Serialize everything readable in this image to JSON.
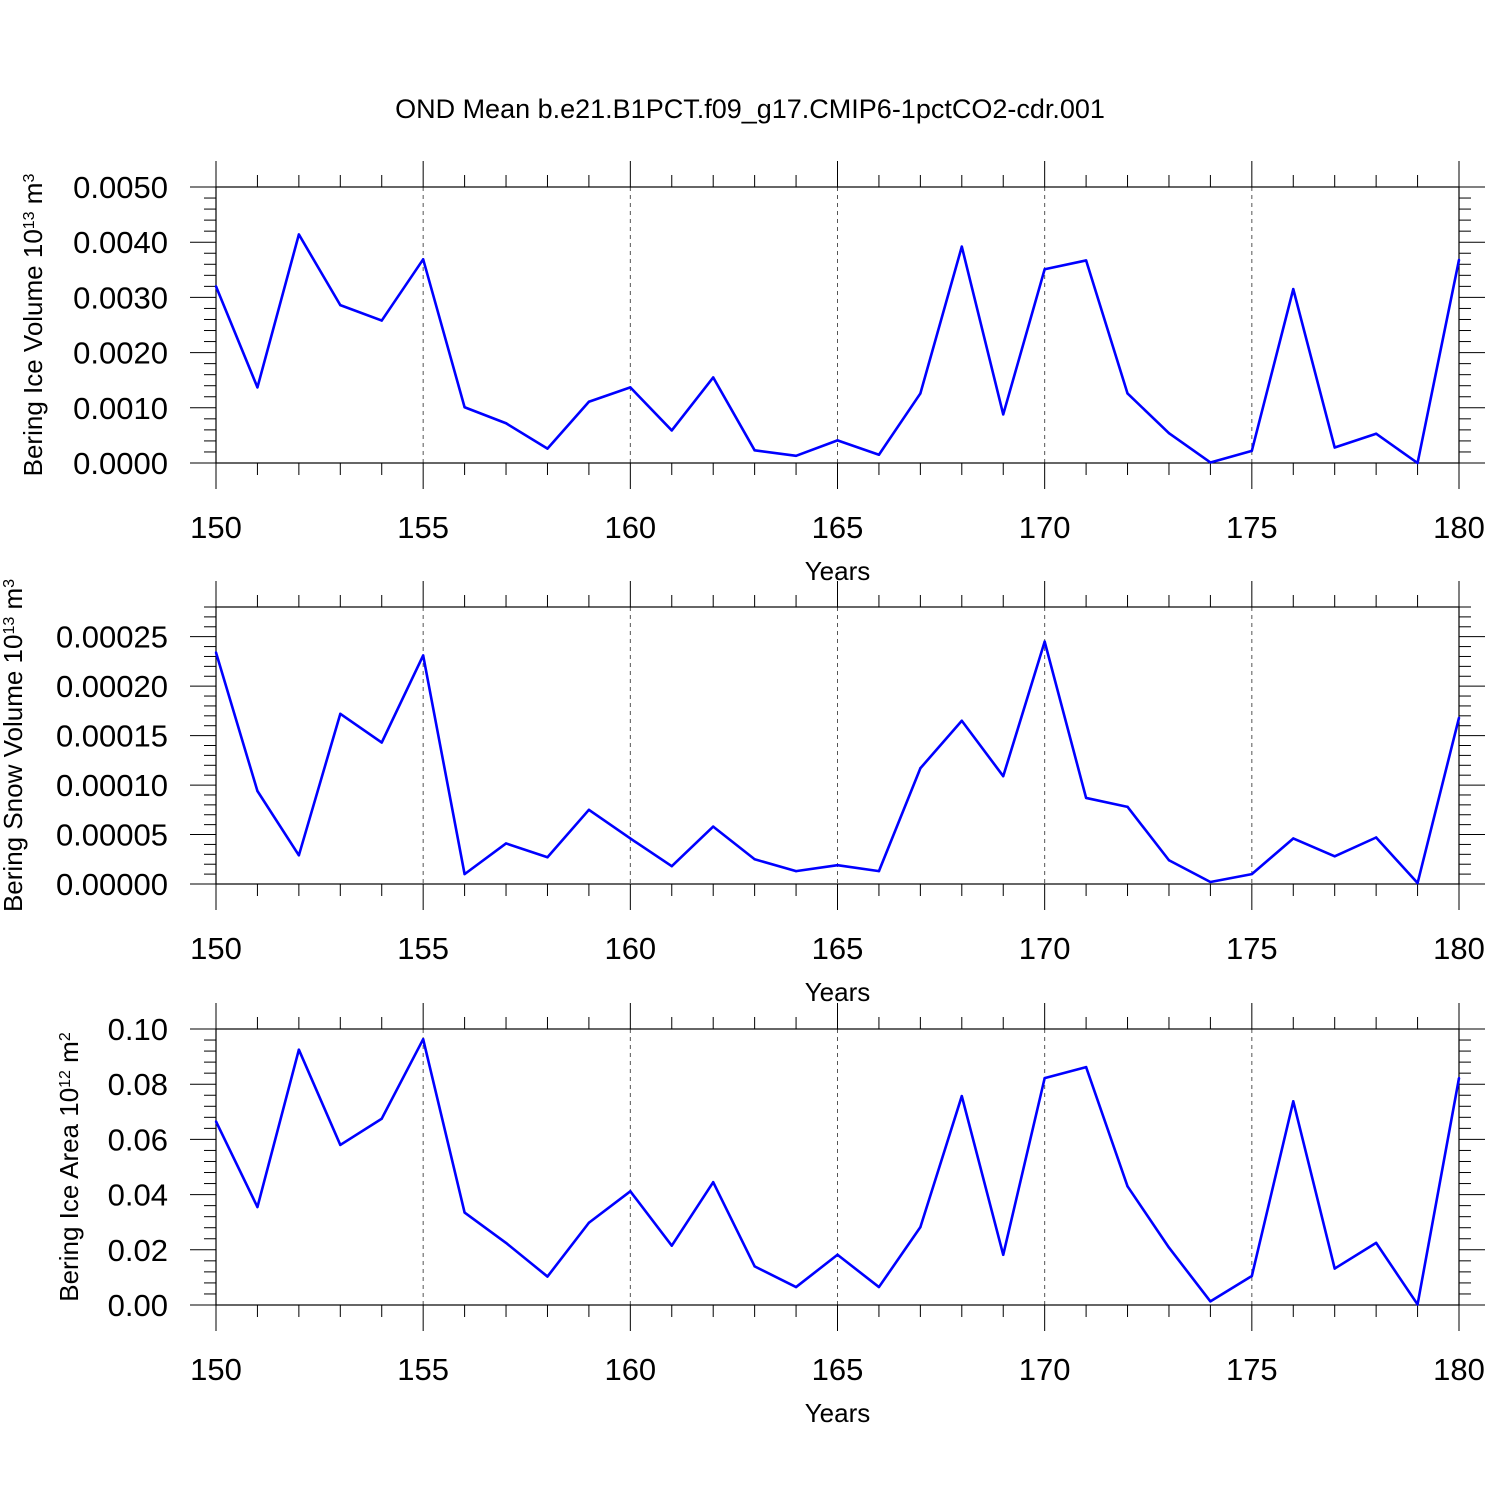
{
  "title": "OND Mean b.e21.B1PCT.f09_g17.CMIP6-1pctCO2-cdr.001",
  "colors": {
    "line": "#0000ff",
    "axis": "#000000",
    "grid": "#555555"
  },
  "chart_data": [
    {
      "type": "line",
      "title": "OND Mean b.e21.B1PCT.f09_g17.CMIP6-1pctCO2-cdr.001",
      "xlabel": "Years",
      "ylabel": "Bering Ice Volume 10",
      "ylabel_exp": "13",
      "ylabel_unit": " m",
      "ylabel_unit_exp": "3",
      "xlim": [
        150,
        180
      ],
      "ylim": [
        0,
        0.005
      ],
      "xticks": [
        150,
        155,
        160,
        165,
        170,
        175,
        180
      ],
      "xtick_labels": [
        "150",
        "155",
        "160",
        "165",
        "170",
        "175",
        "180"
      ],
      "yticks": [
        0,
        0.001,
        0.002,
        0.003,
        0.004,
        0.005
      ],
      "ytick_labels": [
        "0.0000",
        "0.0010",
        "0.0020",
        "0.0030",
        "0.0040",
        "0.0050"
      ],
      "grid": "vertical dashed at major x ticks",
      "x": [
        150,
        151,
        152,
        153,
        154,
        155,
        156,
        157,
        158,
        159,
        160,
        161,
        162,
        163,
        164,
        165,
        166,
        167,
        168,
        169,
        170,
        171,
        172,
        173,
        174,
        175,
        176,
        177,
        178,
        179,
        180
      ],
      "series": [
        {
          "name": "Bering Ice Volume",
          "values": [
            0.0032,
            0.00137,
            0.00414,
            0.00286,
            0.00258,
            0.00369,
            0.00101,
            0.00072,
            0.00026,
            0.00111,
            0.00137,
            0.00059,
            0.00155,
            0.00023,
            0.00013,
            0.00041,
            0.00015,
            0.00126,
            0.00392,
            0.00088,
            0.00351,
            0.00367,
            0.00126,
            0.00054,
            1e-05,
            0.00022,
            0.00315,
            0.00028,
            0.00053,
            0.0,
            0.00368
          ]
        }
      ]
    },
    {
      "type": "line",
      "xlabel": "Years",
      "ylabel": "Bering Snow Volume 10",
      "ylabel_exp": "13",
      "ylabel_unit": " m",
      "ylabel_unit_exp": "3",
      "xlim": [
        150,
        180
      ],
      "ylim": [
        0,
        0.00028
      ],
      "xticks": [
        150,
        155,
        160,
        165,
        170,
        175,
        180
      ],
      "xtick_labels": [
        "150",
        "155",
        "160",
        "165",
        "170",
        "175",
        "180"
      ],
      "yticks": [
        0,
        5e-05,
        0.0001,
        0.00015,
        0.0002,
        0.00025
      ],
      "ytick_labels": [
        "0.00000",
        "0.00005",
        "0.00010",
        "0.00015",
        "0.00020",
        "0.00025"
      ],
      "grid": "vertical dashed at major x ticks",
      "x": [
        150,
        151,
        152,
        153,
        154,
        155,
        156,
        157,
        158,
        159,
        160,
        161,
        162,
        163,
        164,
        165,
        166,
        167,
        168,
        169,
        170,
        171,
        172,
        173,
        174,
        175,
        176,
        177,
        178,
        179,
        180
      ],
      "series": [
        {
          "name": "Bering Snow Volume",
          "values": [
            0.000234,
            9.4e-05,
            2.9e-05,
            0.000172,
            0.000143,
            0.000231,
            1e-05,
            4.1e-05,
            2.7e-05,
            7.5e-05,
            4.6e-05,
            1.8e-05,
            5.8e-05,
            2.5e-05,
            1.3e-05,
            1.9e-05,
            1.3e-05,
            0.000117,
            0.000165,
            0.000109,
            0.000245,
            8.7e-05,
            7.8e-05,
            2.4e-05,
            2e-06,
            1e-05,
            4.6e-05,
            2.8e-05,
            4.7e-05,
            1e-06,
            0.000168
          ]
        }
      ]
    },
    {
      "type": "line",
      "xlabel": "Years",
      "ylabel": "Bering Ice Area 10",
      "ylabel_exp": "12",
      "ylabel_unit": " m",
      "ylabel_unit_exp": "2",
      "xlim": [
        150,
        180
      ],
      "ylim": [
        0,
        0.1
      ],
      "xticks": [
        150,
        155,
        160,
        165,
        170,
        175,
        180
      ],
      "xtick_labels": [
        "150",
        "155",
        "160",
        "165",
        "170",
        "175",
        "180"
      ],
      "yticks": [
        0,
        0.02,
        0.04,
        0.06,
        0.08,
        0.1
      ],
      "ytick_labels": [
        "0.00",
        "0.02",
        "0.04",
        "0.06",
        "0.08",
        "0.10"
      ],
      "grid": "vertical dashed at major x ticks",
      "x": [
        150,
        151,
        152,
        153,
        154,
        155,
        156,
        157,
        158,
        159,
        160,
        161,
        162,
        163,
        164,
        165,
        166,
        167,
        168,
        169,
        170,
        171,
        172,
        173,
        174,
        175,
        176,
        177,
        178,
        179,
        180
      ],
      "series": [
        {
          "name": "Bering Ice Area",
          "values": [
            0.0665,
            0.0355,
            0.0925,
            0.058,
            0.0675,
            0.0963,
            0.0335,
            0.0225,
            0.0103,
            0.0298,
            0.0412,
            0.0215,
            0.0445,
            0.014,
            0.0065,
            0.0182,
            0.0065,
            0.0282,
            0.0757,
            0.0182,
            0.0822,
            0.0862,
            0.043,
            0.0208,
            0.0013,
            0.0105,
            0.0738,
            0.0132,
            0.0225,
            0.0002,
            0.0822
          ]
        }
      ]
    }
  ]
}
